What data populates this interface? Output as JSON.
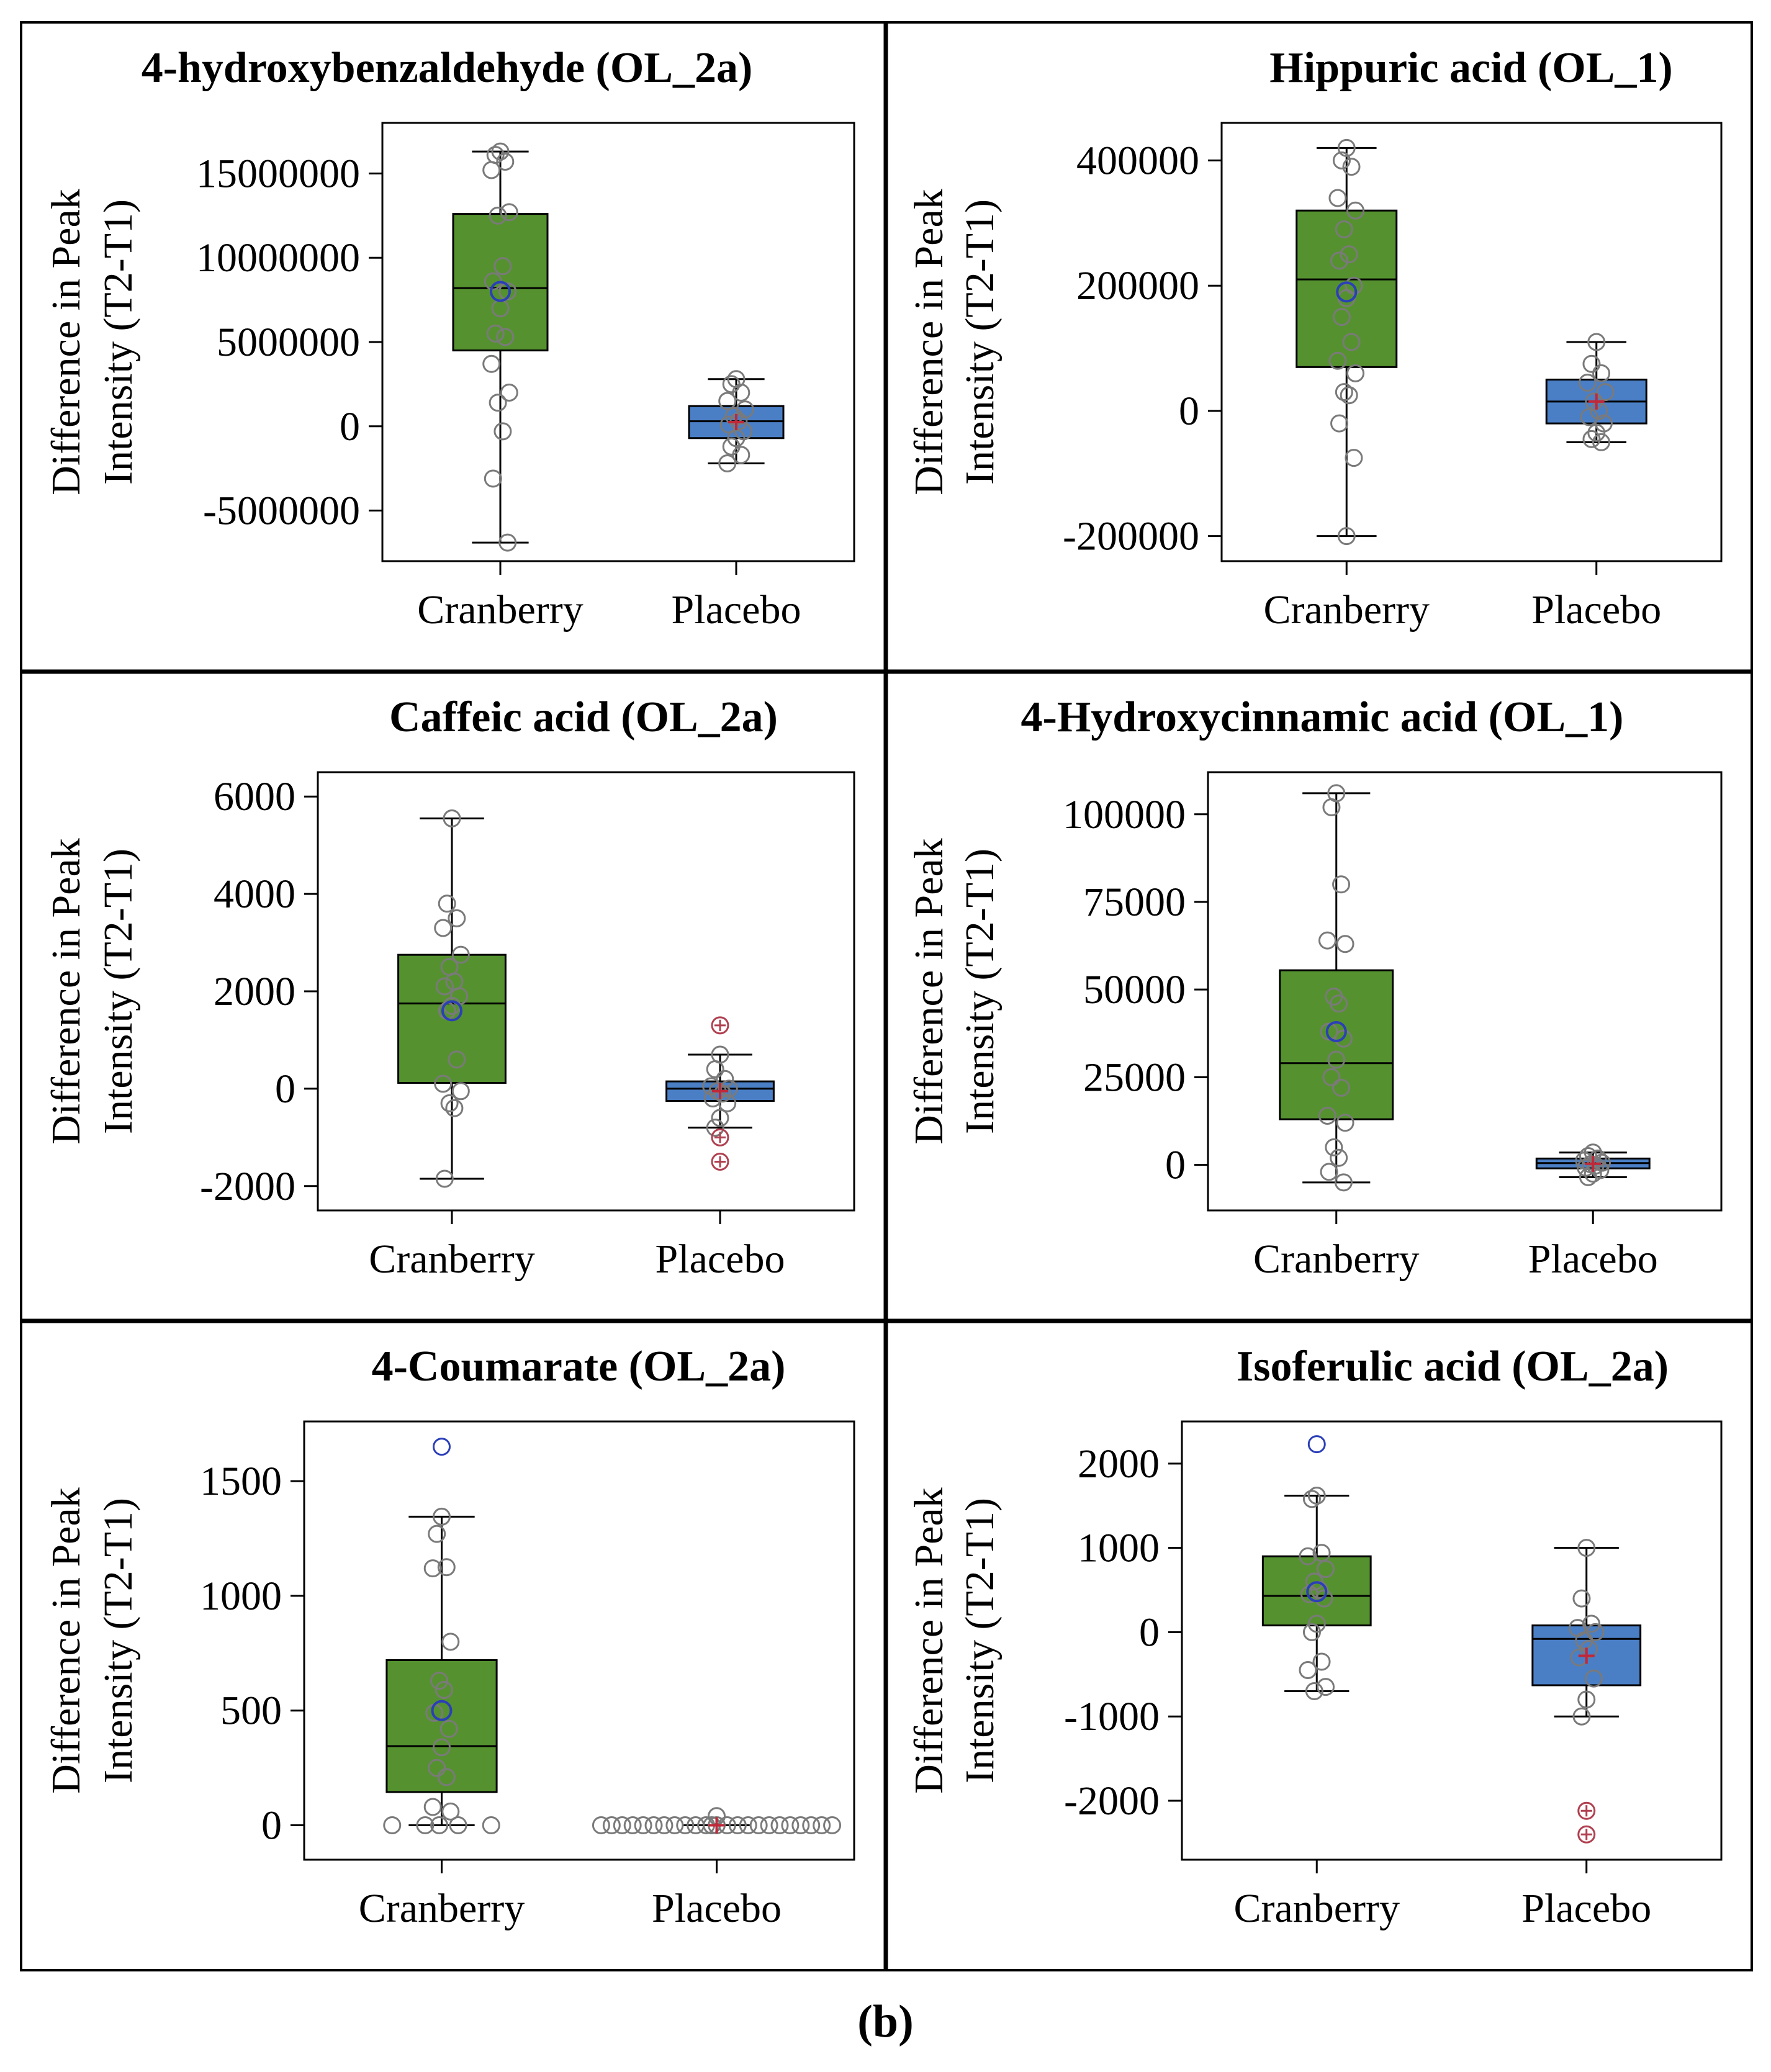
{
  "caption": "(b)",
  "colors": {
    "cranberry_box": "#55922f",
    "placebo_box": "#4a7fc6",
    "point": "#7a7a7a",
    "mean_cranberry": "#2b3fb8",
    "mean_placebo": "#c0283a",
    "outlier_placebo": "#b04050"
  },
  "chart_data": [
    {
      "type": "box",
      "title": "4-hydroxybenzaldehyde (OL_2a)",
      "ylabel_line1": "Difference in Peak",
      "ylabel_line2": "Intensity (T2-T1)",
      "categories": [
        "Cranberry",
        "Placebo"
      ],
      "ylim": [
        -8000000,
        18000000
      ],
      "yticks": [
        -5000000,
        0,
        5000000,
        10000000,
        15000000
      ],
      "ytick_labels": [
        "-5000000",
        "0",
        "5000000",
        "10000000",
        "15000000"
      ],
      "boxes": [
        {
          "name": "Cranberry",
          "whisker_low": -6900000,
          "q1": 4500000,
          "median": 8200000,
          "q3": 12600000,
          "whisker_high": 16300000,
          "mean": 8000000,
          "points": [
            16300000,
            16100000,
            15700000,
            15200000,
            12700000,
            12500000,
            9500000,
            8600000,
            8000000,
            7000000,
            5500000,
            5300000,
            3700000,
            2000000,
            1400000,
            -300000,
            -3100000,
            -6900000
          ],
          "outliers": []
        },
        {
          "name": "Placebo",
          "whisker_low": -2200000,
          "q1": -700000,
          "median": 300000,
          "q3": 1200000,
          "whisker_high": 2800000,
          "mean": 250000,
          "points": [
            2800000,
            2500000,
            2000000,
            1500000,
            1000000,
            600000,
            300000,
            100000,
            -300000,
            -700000,
            -1200000,
            -1700000,
            -2200000
          ],
          "outliers": []
        }
      ]
    },
    {
      "type": "box",
      "title": "Hippuric acid (OL_1)",
      "ylabel_line1": "Difference in Peak",
      "ylabel_line2": "Intensity (T2-T1)",
      "categories": [
        "Cranberry",
        "Placebo"
      ],
      "ylim": [
        -240000,
        460000
      ],
      "yticks": [
        -200000,
        0,
        200000,
        400000
      ],
      "ytick_labels": [
        "-200000",
        "0",
        "200000",
        "400000"
      ],
      "boxes": [
        {
          "name": "Cranberry",
          "whisker_low": -200000,
          "q1": 70000,
          "median": 210000,
          "q3": 320000,
          "whisker_high": 420000,
          "mean": 190000,
          "points": [
            420000,
            400000,
            390000,
            340000,
            320000,
            290000,
            250000,
            240000,
            200000,
            180000,
            150000,
            110000,
            80000,
            60000,
            30000,
            25000,
            -20000,
            -75000,
            -200000
          ],
          "outliers": []
        },
        {
          "name": "Placebo",
          "whisker_low": -50000,
          "q1": -20000,
          "median": 15000,
          "q3": 50000,
          "whisker_high": 110000,
          "mean": 15000,
          "points": [
            110000,
            75000,
            60000,
            45000,
            30000,
            15000,
            0,
            -10000,
            -20000,
            -35000,
            -45000,
            -50000
          ],
          "outliers": []
        }
      ]
    },
    {
      "type": "box",
      "title": "Caffeic acid (OL_2a)",
      "ylabel_line1": "Difference in Peak",
      "ylabel_line2": "Intensity (T2-T1)",
      "categories": [
        "Cranberry",
        "Placebo"
      ],
      "ylim": [
        -2500,
        6500
      ],
      "yticks": [
        -2000,
        0,
        2000,
        4000,
        6000
      ],
      "ytick_labels": [
        "-2000",
        "0",
        "2000",
        "4000",
        "6000"
      ],
      "boxes": [
        {
          "name": "Cranberry",
          "whisker_low": -1850,
          "q1": 120,
          "median": 1750,
          "q3": 2750,
          "whisker_high": 5550,
          "mean": 1600,
          "points": [
            5550,
            3800,
            3500,
            3300,
            2750,
            2500,
            2200,
            2100,
            1900,
            1700,
            1600,
            600,
            100,
            -50,
            -300,
            -400,
            -1850
          ],
          "outliers": []
        },
        {
          "name": "Placebo",
          "whisker_low": -800,
          "q1": -250,
          "median": 0,
          "q3": 150,
          "whisker_high": 700,
          "mean": -50,
          "points": [
            700,
            400,
            200,
            50,
            0,
            -50,
            -100,
            -200,
            -300,
            -600,
            -800
          ],
          "outliers": [
            1300,
            -1000,
            -1500
          ]
        }
      ]
    },
    {
      "type": "box",
      "title": "4-Hydroxycinnamic acid (OL_1)",
      "ylabel_line1": "Difference in Peak",
      "ylabel_line2": "Intensity (T2-T1)",
      "categories": [
        "Cranberry",
        "Placebo"
      ],
      "ylim": [
        -13000,
        112000
      ],
      "yticks": [
        0,
        25000,
        50000,
        75000,
        100000
      ],
      "ytick_labels": [
        "0",
        "25000",
        "50000",
        "75000",
        "100000"
      ],
      "boxes": [
        {
          "name": "Cranberry",
          "whisker_low": -5000,
          "q1": 13000,
          "median": 29000,
          "q3": 55500,
          "whisker_high": 106000,
          "mean": 38000,
          "points": [
            106000,
            102000,
            80000,
            64000,
            63000,
            48000,
            46000,
            38000,
            36000,
            30000,
            25000,
            22000,
            14000,
            12000,
            5000,
            2000,
            -2000,
            -5000
          ],
          "outliers": []
        },
        {
          "name": "Placebo",
          "whisker_low": -3500,
          "q1": -1000,
          "median": 500,
          "q3": 1800,
          "whisker_high": 3500,
          "mean": 300,
          "points": [
            3500,
            2500,
            1800,
            1200,
            600,
            200,
            -200,
            -800,
            -1500,
            -2500,
            -3500
          ],
          "outliers": []
        }
      ]
    },
    {
      "type": "box",
      "title": "4-Coumarate (OL_2a)",
      "ylabel_line1": "Difference in Peak",
      "ylabel_line2": "Intensity (T2-T1)",
      "categories": [
        "Cranberry",
        "Placebo"
      ],
      "ylim": [
        -150,
        1760
      ],
      "yticks": [
        0,
        500,
        1000,
        1500
      ],
      "ytick_labels": [
        "0",
        "500",
        "1000",
        "1500"
      ],
      "boxes": [
        {
          "name": "Cranberry",
          "whisker_low": 0,
          "q1": 145,
          "median": 345,
          "q3": 720,
          "whisker_high": 1345,
          "mean": 500,
          "points": [
            1345,
            1270,
            1125,
            1120,
            800,
            630,
            590,
            490,
            420,
            340,
            250,
            210,
            80,
            60,
            0
          ],
          "outliers": [
            1650
          ],
          "zero_points": 4
        },
        {
          "name": "Placebo",
          "whisker_low": 0,
          "q1": 0,
          "median": 0,
          "q3": 0,
          "whisker_high": 0,
          "mean": 0,
          "points": [
            40,
            0
          ],
          "outliers": [],
          "zero_points": 23
        }
      ]
    },
    {
      "type": "box",
      "title": "Isoferulic acid (OL_2a)",
      "ylabel_line1": "Difference in Peak",
      "ylabel_line2": "Intensity (T2-T1)",
      "categories": [
        "Cranberry",
        "Placebo"
      ],
      "ylim": [
        -2700,
        2500
      ],
      "yticks": [
        -2000,
        -1000,
        0,
        1000,
        2000
      ],
      "ytick_labels": [
        "-2000",
        "-1000",
        "0",
        "1000",
        "2000"
      ],
      "boxes": [
        {
          "name": "Cranberry",
          "whisker_low": -700,
          "q1": 80,
          "median": 430,
          "q3": 900,
          "whisker_high": 1620,
          "mean": 480,
          "points": [
            1620,
            1580,
            940,
            900,
            750,
            600,
            500,
            450,
            400,
            100,
            0,
            -350,
            -450,
            -650,
            -700
          ],
          "outliers": [
            2230
          ]
        },
        {
          "name": "Placebo",
          "whisker_low": -1000,
          "q1": -630,
          "median": -80,
          "q3": 80,
          "whisker_high": 1000,
          "mean": -280,
          "points": [
            1000,
            400,
            100,
            50,
            0,
            -100,
            -200,
            -300,
            -550,
            -800,
            -1000
          ],
          "outliers": [
            -2120,
            -2400
          ]
        }
      ]
    }
  ]
}
